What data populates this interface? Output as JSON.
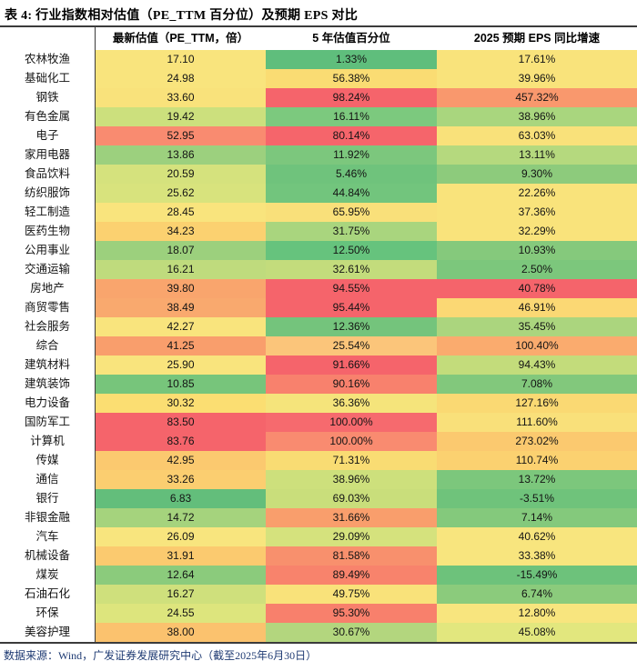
{
  "title": "表 4:  行业指数相对估值（PE_TTM 百分位）及预期 EPS 对比",
  "footer": "数据来源：Wind，广发证券发展研究中心（截至2025年6月30日）",
  "table": {
    "columns": [
      "最新估值（PE_TTM，倍）",
      "5 年估值百分位",
      "2025 预期 EPS 同比增速"
    ],
    "rows": [
      {
        "label": "农林牧渔",
        "pe": "17.10",
        "pe_bg": "#F9E47D",
        "pctl": "1.33%",
        "pctl_bg": "#5FBE7C",
        "eps": "17.61%",
        "eps_bg": "#F9E37B"
      },
      {
        "label": "基础化工",
        "pe": "24.98",
        "pe_bg": "#F9E47D",
        "pctl": "56.38%",
        "pctl_bg": "#FADC73",
        "eps": "39.96%",
        "eps_bg": "#F9E37B"
      },
      {
        "label": "钢铁",
        "pe": "33.60",
        "pe_bg": "#F9E27B",
        "pctl": "98.24%",
        "pctl_bg": "#F5646B",
        "eps": "457.32%",
        "eps_bg": "#F9986D"
      },
      {
        "label": "有色金属",
        "pe": "19.42",
        "pe_bg": "#CCE07D",
        "pctl": "16.11%",
        "pctl_bg": "#7CC97E",
        "eps": "38.96%",
        "eps_bg": "#A9D67E"
      },
      {
        "label": "电子",
        "pe": "52.95",
        "pe_bg": "#F98B70",
        "pctl": "80.14%",
        "pctl_bg": "#F5656B",
        "eps": "63.03%",
        "eps_bg": "#F9E17A"
      },
      {
        "label": "家用电器",
        "pe": "13.86",
        "pe_bg": "#9CD07E",
        "pctl": "11.92%",
        "pctl_bg": "#7CC77D",
        "eps": "13.11%",
        "eps_bg": "#B5D97E"
      },
      {
        "label": "食品饮料",
        "pe": "20.59",
        "pe_bg": "#D5E27D",
        "pctl": "5.46%",
        "pctl_bg": "#6FC37C",
        "eps": "9.30%",
        "eps_bg": "#8DCB7C"
      },
      {
        "label": "纺织服饰",
        "pe": "25.62",
        "pe_bg": "#D8E37D",
        "pctl": "44.84%",
        "pctl_bg": "#72C57D",
        "eps": "22.26%",
        "eps_bg": "#F9E37B"
      },
      {
        "label": "轻工制造",
        "pe": "28.45",
        "pe_bg": "#F9E47D",
        "pctl": "65.95%",
        "pctl_bg": "#F9E07A",
        "eps": "37.36%",
        "eps_bg": "#F9E37B"
      },
      {
        "label": "医药生物",
        "pe": "34.23",
        "pe_bg": "#FBD170",
        "pctl": "31.75%",
        "pctl_bg": "#A9D57E",
        "eps": "32.29%",
        "eps_bg": "#F9E37B"
      },
      {
        "label": "公用事业",
        "pe": "18.07",
        "pe_bg": "#9CD07D",
        "pctl": "12.50%",
        "pctl_bg": "#66C37D",
        "eps": "10.93%",
        "eps_bg": "#85C97C"
      },
      {
        "label": "交通运输",
        "pe": "16.21",
        "pe_bg": "#BFDB7D",
        "pctl": "32.61%",
        "pctl_bg": "#C3DC7C",
        "eps": "2.50%",
        "eps_bg": "#7CC77C"
      },
      {
        "label": "房地产",
        "pe": "39.80",
        "pe_bg": "#F9A56D",
        "pctl": "94.55%",
        "pctl_bg": "#F5646B",
        "eps": "40.78%",
        "eps_bg": "#F5646B"
      },
      {
        "label": "商贸零售",
        "pe": "38.49",
        "pe_bg": "#F9A96E",
        "pctl": "95.44%",
        "pctl_bg": "#F5646B",
        "eps": "46.91%",
        "eps_bg": "#FBD874"
      },
      {
        "label": "社会服务",
        "pe": "42.27",
        "pe_bg": "#F9E47D",
        "pctl": "12.36%",
        "pctl_bg": "#74C47C",
        "eps": "35.45%",
        "eps_bg": "#ABD57E"
      },
      {
        "label": "综合",
        "pe": "41.25",
        "pe_bg": "#F99E6C",
        "pctl": "25.54%",
        "pctl_bg": "#FBC57A",
        "eps": "100.40%",
        "eps_bg": "#FAAB6E"
      },
      {
        "label": "建筑材料",
        "pe": "25.90",
        "pe_bg": "#F9E47D",
        "pctl": "91.66%",
        "pctl_bg": "#F5646B",
        "eps": "94.43%",
        "eps_bg": "#C3DC7B"
      },
      {
        "label": "建筑装饰",
        "pe": "10.85",
        "pe_bg": "#77C57B",
        "pctl": "90.16%",
        "pctl_bg": "#F8816D",
        "eps": "7.08%",
        "eps_bg": "#82C87C"
      },
      {
        "label": "电力设备",
        "pe": "30.32",
        "pe_bg": "#FBDE72",
        "pctl": "36.36%",
        "pctl_bg": "#F5E47B",
        "eps": "127.16%",
        "eps_bg": "#FAD973"
      },
      {
        "label": "国防军工",
        "pe": "83.50",
        "pe_bg": "#F5646B",
        "pctl": "100.00%",
        "pctl_bg": "#F66A6E",
        "eps": "111.60%",
        "eps_bg": "#F9E07A"
      },
      {
        "label": "计算机",
        "pe": "83.76",
        "pe_bg": "#F5646B",
        "pctl": "100.00%",
        "pctl_bg": "#F98B70",
        "eps": "273.02%",
        "eps_bg": "#FBC96F"
      },
      {
        "label": "传媒",
        "pe": "42.95",
        "pe_bg": "#FBC96F",
        "pctl": "71.31%",
        "pctl_bg": "#F9DC73",
        "eps": "110.74%",
        "eps_bg": "#FBD170"
      },
      {
        "label": "通信",
        "pe": "33.26",
        "pe_bg": "#FBCE70",
        "pctl": "38.96%",
        "pctl_bg": "#CDE07C",
        "eps": "13.72%",
        "eps_bg": "#7CC77C"
      },
      {
        "label": "银行",
        "pe": "6.83",
        "pe_bg": "#63BE7B",
        "pctl": "69.03%",
        "pctl_bg": "#C9DE7B",
        "eps": "-3.51%",
        "eps_bg": "#6FC37B"
      },
      {
        "label": "非银金融",
        "pe": "14.72",
        "pe_bg": "#A5D37D",
        "pctl": "31.66%",
        "pctl_bg": "#F99E6C",
        "eps": "7.14%",
        "eps_bg": "#84C97C"
      },
      {
        "label": "汽车",
        "pe": "26.09",
        "pe_bg": "#F8E57E",
        "pctl": "29.09%",
        "pctl_bg": "#D5E27D",
        "eps": "40.62%",
        "eps_bg": "#F8E57E"
      },
      {
        "label": "机械设备",
        "pe": "31.91",
        "pe_bg": "#FBCA6F",
        "pctl": "81.58%",
        "pctl_bg": "#F8906D",
        "eps": "33.38%",
        "eps_bg": "#F8E57E"
      },
      {
        "label": "煤炭",
        "pe": "12.64",
        "pe_bg": "#8BCB7C",
        "pctl": "89.49%",
        "pctl_bg": "#F8836C",
        "eps": "-15.49%",
        "eps_bg": "#6DC27B"
      },
      {
        "label": "石油石化",
        "pe": "16.27",
        "pe_bg": "#CFE07C",
        "pctl": "49.75%",
        "pctl_bg": "#F9E27A",
        "eps": "6.74%",
        "eps_bg": "#8BCB7C"
      },
      {
        "label": "环保",
        "pe": "24.55",
        "pe_bg": "#DDE57D",
        "pctl": "95.30%",
        "pctl_bg": "#F8806C",
        "eps": "12.80%",
        "eps_bg": "#F8E57E"
      },
      {
        "label": "美容护理",
        "pe": "38.00",
        "pe_bg": "#FBC26E",
        "pctl": "30.67%",
        "pctl_bg": "#B3D67E",
        "eps": "45.08%",
        "eps_bg": "#E2E77E"
      }
    ]
  },
  "chart_data": {
    "type": "table",
    "title": "表 4: 行业指数相对估值（PE_TTM 百分位）及预期 EPS 对比",
    "categories": [
      "农林牧渔",
      "基础化工",
      "钢铁",
      "有色金属",
      "电子",
      "家用电器",
      "食品饮料",
      "纺织服饰",
      "轻工制造",
      "医药生物",
      "公用事业",
      "交通运输",
      "房地产",
      "商贸零售",
      "社会服务",
      "综合",
      "建筑材料",
      "建筑装饰",
      "电力设备",
      "国防军工",
      "计算机",
      "传媒",
      "通信",
      "银行",
      "非银金融",
      "汽车",
      "机械设备",
      "煤炭",
      "石油石化",
      "环保",
      "美容护理"
    ],
    "series": [
      {
        "name": "最新估值（PE_TTM，倍）",
        "values": [
          17.1,
          24.98,
          33.6,
          19.42,
          52.95,
          13.86,
          20.59,
          25.62,
          28.45,
          34.23,
          18.07,
          16.21,
          39.8,
          38.49,
          42.27,
          41.25,
          25.9,
          10.85,
          30.32,
          83.5,
          83.76,
          42.95,
          33.26,
          6.83,
          14.72,
          26.09,
          31.91,
          12.64,
          16.27,
          24.55,
          38.0
        ]
      },
      {
        "name": "5 年估值百分位(%)",
        "values": [
          1.33,
          56.38,
          98.24,
          16.11,
          80.14,
          11.92,
          5.46,
          44.84,
          65.95,
          31.75,
          12.5,
          32.61,
          94.55,
          95.44,
          12.36,
          25.54,
          91.66,
          90.16,
          36.36,
          100.0,
          100.0,
          71.31,
          38.96,
          69.03,
          31.66,
          29.09,
          81.58,
          89.49,
          49.75,
          95.3,
          30.67
        ]
      },
      {
        "name": "2025 预期 EPS 同比增速(%)",
        "values": [
          17.61,
          39.96,
          457.32,
          38.96,
          63.03,
          13.11,
          9.3,
          22.26,
          37.36,
          32.29,
          10.93,
          2.5,
          40.78,
          46.91,
          35.45,
          100.4,
          94.43,
          7.08,
          127.16,
          111.6,
          273.02,
          110.74,
          13.72,
          -3.51,
          7.14,
          40.62,
          33.38,
          -15.49,
          6.74,
          12.8,
          45.08
        ]
      }
    ],
    "legend_position": "none",
    "notes": "heatmap-colored table, red=high / green=low"
  }
}
